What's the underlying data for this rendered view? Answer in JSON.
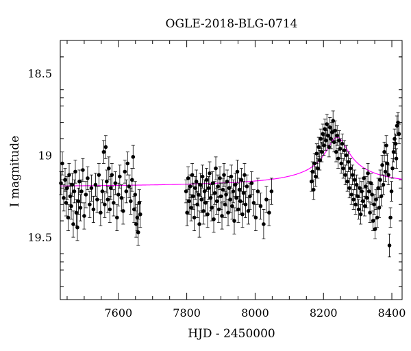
{
  "chart_data": {
    "type": "scatter",
    "title": "OGLE-2018-BLG-0714",
    "xlabel": "HJD - 2450000",
    "ylabel": "I magnitude",
    "xlim": [
      7430,
      8430
    ],
    "ylim": [
      18.3,
      19.88
    ],
    "y_inverted": true,
    "x_ticks": [
      7600,
      7800,
      8000,
      8200,
      8400
    ],
    "x_tick_labels": [
      "7600",
      "7800",
      "8000",
      "8200",
      "8400"
    ],
    "y_ticks": [
      18.5,
      19.0,
      19.5
    ],
    "y_tick_labels": [
      "18.5",
      "19",
      "19.5"
    ],
    "grid": false,
    "colors": {
      "data": "#000000",
      "model": "#ff00ff",
      "axes": "#000000"
    },
    "series": [
      {
        "kind": "data",
        "marker": "filled-circle",
        "error_bars": true,
        "points": [
          [
            7432,
            19.17,
            0.07
          ],
          [
            7436,
            19.05,
            0.07
          ],
          [
            7440,
            19.26,
            0.08
          ],
          [
            7444,
            19.15,
            0.07
          ],
          [
            7447,
            19.29,
            0.08
          ],
          [
            7450,
            19.2,
            0.07
          ],
          [
            7453,
            19.38,
            0.08
          ],
          [
            7456,
            19.12,
            0.07
          ],
          [
            7459,
            19.25,
            0.08
          ],
          [
            7462,
            19.31,
            0.08
          ],
          [
            7465,
            19.18,
            0.07
          ],
          [
            7468,
            19.42,
            0.08
          ],
          [
            7471,
            19.22,
            0.07
          ],
          [
            7474,
            19.1,
            0.07
          ],
          [
            7477,
            19.35,
            0.08
          ],
          [
            7480,
            19.44,
            0.08
          ],
          [
            7483,
            19.28,
            0.08
          ],
          [
            7486,
            19.16,
            0.07
          ],
          [
            7489,
            19.32,
            0.08
          ],
          [
            7492,
            19.22,
            0.07
          ],
          [
            7496,
            19.09,
            0.07
          ],
          [
            7500,
            19.37,
            0.08
          ],
          [
            7505,
            19.24,
            0.08
          ],
          [
            7510,
            19.14,
            0.07
          ],
          [
            7516,
            19.3,
            0.08
          ],
          [
            7521,
            19.2,
            0.08
          ],
          [
            7527,
            19.33,
            0.08
          ],
          [
            7533,
            19.18,
            0.07
          ],
          [
            7538,
            19.27,
            0.08
          ],
          [
            7543,
            19.12,
            0.07
          ],
          [
            7548,
            19.35,
            0.08
          ],
          [
            7553,
            19.22,
            0.07
          ],
          [
            7557,
            18.98,
            0.07
          ],
          [
            7560,
            19.3,
            0.08
          ],
          [
            7563,
            18.95,
            0.07
          ],
          [
            7566,
            19.16,
            0.07
          ],
          [
            7569,
            19.27,
            0.08
          ],
          [
            7572,
            19.08,
            0.07
          ],
          [
            7575,
            19.33,
            0.08
          ],
          [
            7578,
            19.2,
            0.07
          ],
          [
            7581,
            19.12,
            0.07
          ],
          [
            7586,
            19.29,
            0.08
          ],
          [
            7591,
            19.17,
            0.07
          ],
          [
            7596,
            19.38,
            0.08
          ],
          [
            7600,
            19.24,
            0.07
          ],
          [
            7604,
            19.13,
            0.07
          ],
          [
            7609,
            19.26,
            0.08
          ],
          [
            7614,
            19.34,
            0.08
          ],
          [
            7619,
            19.1,
            0.07
          ],
          [
            7623,
            19.22,
            0.07
          ],
          [
            7627,
            19.05,
            0.07
          ],
          [
            7631,
            19.19,
            0.07
          ],
          [
            7636,
            19.28,
            0.08
          ],
          [
            7640,
            19.15,
            0.07
          ],
          [
            7643,
            19.01,
            0.07
          ],
          [
            7646,
            19.33,
            0.08
          ],
          [
            7649,
            19.24,
            0.08
          ],
          [
            7652,
            19.42,
            0.08
          ],
          [
            7655,
            19.38,
            0.08
          ],
          [
            7658,
            19.47,
            0.08
          ],
          [
            7661,
            19.29,
            0.08
          ],
          [
            7664,
            19.36,
            0.08
          ],
          [
            7798,
            19.22,
            0.07
          ],
          [
            7801,
            19.35,
            0.08
          ],
          [
            7804,
            19.14,
            0.07
          ],
          [
            7807,
            19.28,
            0.08
          ],
          [
            7810,
            19.19,
            0.07
          ],
          [
            7813,
            19.32,
            0.08
          ],
          [
            7816,
            19.12,
            0.07
          ],
          [
            7819,
            19.25,
            0.08
          ],
          [
            7822,
            19.38,
            0.08
          ],
          [
            7825,
            19.2,
            0.07
          ],
          [
            7828,
            19.16,
            0.07
          ],
          [
            7831,
            19.3,
            0.08
          ],
          [
            7834,
            19.24,
            0.07
          ],
          [
            7837,
            19.42,
            0.08
          ],
          [
            7840,
            19.18,
            0.07
          ],
          [
            7843,
            19.27,
            0.08
          ],
          [
            7846,
            19.13,
            0.07
          ],
          [
            7849,
            19.34,
            0.08
          ],
          [
            7852,
            19.22,
            0.07
          ],
          [
            7855,
            19.29,
            0.08
          ],
          [
            7858,
            19.15,
            0.07
          ],
          [
            7861,
            19.36,
            0.08
          ],
          [
            7864,
            19.2,
            0.07
          ],
          [
            7867,
            19.11,
            0.07
          ],
          [
            7870,
            19.26,
            0.08
          ],
          [
            7873,
            19.32,
            0.08
          ],
          [
            7876,
            19.17,
            0.07
          ],
          [
            7879,
            19.39,
            0.08
          ],
          [
            7882,
            19.23,
            0.07
          ],
          [
            7885,
            19.08,
            0.07
          ],
          [
            7888,
            19.28,
            0.08
          ],
          [
            7891,
            19.19,
            0.07
          ],
          [
            7894,
            19.33,
            0.08
          ],
          [
            7897,
            19.14,
            0.07
          ],
          [
            7900,
            19.25,
            0.08
          ],
          [
            7903,
            19.37,
            0.08
          ],
          [
            7906,
            19.21,
            0.07
          ],
          [
            7909,
            19.12,
            0.07
          ],
          [
            7912,
            19.3,
            0.08
          ],
          [
            7915,
            19.24,
            0.07
          ],
          [
            7918,
            19.16,
            0.07
          ],
          [
            7921,
            19.35,
            0.08
          ],
          [
            7924,
            19.2,
            0.07
          ],
          [
            7927,
            19.27,
            0.08
          ],
          [
            7930,
            19.13,
            0.07
          ],
          [
            7933,
            19.31,
            0.08
          ],
          [
            7936,
            19.22,
            0.07
          ],
          [
            7939,
            19.4,
            0.08
          ],
          [
            7942,
            19.18,
            0.07
          ],
          [
            7945,
            19.26,
            0.08
          ],
          [
            7948,
            19.1,
            0.07
          ],
          [
            7951,
            19.33,
            0.08
          ],
          [
            7954,
            19.21,
            0.07
          ],
          [
            7957,
            19.28,
            0.08
          ],
          [
            7960,
            19.15,
            0.07
          ],
          [
            7963,
            19.36,
            0.08
          ],
          [
            7966,
            19.23,
            0.07
          ],
          [
            7969,
            19.12,
            0.07
          ],
          [
            7972,
            19.3,
            0.08
          ],
          [
            7976,
            19.19,
            0.07
          ],
          [
            7980,
            19.34,
            0.08
          ],
          [
            7985,
            19.25,
            0.08
          ],
          [
            7990,
            19.17,
            0.07
          ],
          [
            7996,
            19.29,
            0.08
          ],
          [
            8002,
            19.38,
            0.08
          ],
          [
            8008,
            19.22,
            0.08
          ],
          [
            8016,
            19.31,
            0.08
          ],
          [
            8025,
            19.42,
            0.09
          ],
          [
            8033,
            19.27,
            0.08
          ],
          [
            8041,
            19.35,
            0.08
          ],
          [
            8048,
            19.22,
            0.08
          ],
          [
            8165,
            19.16,
            0.06
          ],
          [
            8168,
            19.1,
            0.06
          ],
          [
            8171,
            19.21,
            0.06
          ],
          [
            8174,
            19.05,
            0.06
          ],
          [
            8177,
            19.13,
            0.06
          ],
          [
            8180,
            18.99,
            0.06
          ],
          [
            8183,
            19.08,
            0.06
          ],
          [
            8186,
            18.95,
            0.06
          ],
          [
            8189,
            19.03,
            0.06
          ],
          [
            8192,
            18.9,
            0.06
          ],
          [
            8195,
            18.98,
            0.06
          ],
          [
            8198,
            18.87,
            0.06
          ],
          [
            8201,
            18.94,
            0.06
          ],
          [
            8204,
            18.84,
            0.06
          ],
          [
            8207,
            18.91,
            0.06
          ],
          [
            8210,
            18.81,
            0.06
          ],
          [
            8213,
            18.88,
            0.06
          ],
          [
            8216,
            18.95,
            0.06
          ],
          [
            8219,
            18.83,
            0.06
          ],
          [
            8222,
            18.9,
            0.06
          ],
          [
            8225,
            18.86,
            0.06
          ],
          [
            8228,
            18.79,
            0.06
          ],
          [
            8231,
            18.92,
            0.06
          ],
          [
            8234,
            18.85,
            0.06
          ],
          [
            8237,
            18.98,
            0.06
          ],
          [
            8240,
            18.88,
            0.06
          ],
          [
            8243,
            19.02,
            0.06
          ],
          [
            8246,
            18.91,
            0.06
          ],
          [
            8249,
            18.96,
            0.06
          ],
          [
            8252,
            19.05,
            0.06
          ],
          [
            8255,
            18.93,
            0.06
          ],
          [
            8258,
            19.08,
            0.06
          ],
          [
            8261,
            18.97,
            0.06
          ],
          [
            8264,
            19.12,
            0.06
          ],
          [
            8267,
            19.0,
            0.06
          ],
          [
            8270,
            19.16,
            0.06
          ],
          [
            8273,
            19.04,
            0.06
          ],
          [
            8276,
            19.2,
            0.06
          ],
          [
            8279,
            19.08,
            0.06
          ],
          [
            8282,
            19.24,
            0.06
          ],
          [
            8285,
            19.12,
            0.06
          ],
          [
            8288,
            19.27,
            0.06
          ],
          [
            8291,
            19.15,
            0.06
          ],
          [
            8294,
            19.3,
            0.06
          ],
          [
            8297,
            19.18,
            0.06
          ],
          [
            8300,
            19.25,
            0.06
          ],
          [
            8303,
            19.33,
            0.06
          ],
          [
            8306,
            19.2,
            0.06
          ],
          [
            8309,
            19.36,
            0.06
          ],
          [
            8312,
            19.22,
            0.06
          ],
          [
            8315,
            19.28,
            0.06
          ],
          [
            8318,
            19.14,
            0.06
          ],
          [
            8321,
            19.31,
            0.06
          ],
          [
            8324,
            19.19,
            0.06
          ],
          [
            8327,
            19.26,
            0.06
          ],
          [
            8330,
            19.11,
            0.06
          ],
          [
            8333,
            19.22,
            0.06
          ],
          [
            8336,
            19.35,
            0.06
          ],
          [
            8339,
            19.17,
            0.06
          ],
          [
            8342,
            19.24,
            0.06
          ],
          [
            8345,
            19.4,
            0.06
          ],
          [
            8348,
            19.3,
            0.06
          ],
          [
            8351,
            19.45,
            0.06
          ],
          [
            8354,
            19.27,
            0.06
          ],
          [
            8357,
            19.38,
            0.06
          ],
          [
            8360,
            19.2,
            0.06
          ],
          [
            8363,
            19.32,
            0.06
          ],
          [
            8366,
            19.15,
            0.06
          ],
          [
            8369,
            19.25,
            0.06
          ],
          [
            8372,
            19.06,
            0.06
          ],
          [
            8375,
            19.18,
            0.06
          ],
          [
            8378,
            18.98,
            0.06
          ],
          [
            8381,
            19.1,
            0.06
          ],
          [
            8384,
            18.94,
            0.06
          ],
          [
            8387,
            19.05,
            0.06
          ],
          [
            8390,
            19.12,
            0.06
          ],
          [
            8393,
            19.55,
            0.07
          ],
          [
            8396,
            19.38,
            0.06
          ],
          [
            8399,
            19.22,
            0.06
          ],
          [
            8402,
            19.08,
            0.06
          ],
          [
            8405,
            18.98,
            0.06
          ],
          [
            8408,
            18.9,
            0.06
          ],
          [
            8411,
            18.93,
            0.06
          ],
          [
            8413,
            19.02,
            0.06
          ],
          [
            8415,
            18.82,
            0.06
          ],
          [
            8418,
            18.8,
            0.06
          ],
          [
            8421,
            18.87,
            0.06
          ]
        ]
      },
      {
        "kind": "model",
        "line": "solid",
        "model": {
          "baseline": 19.2,
          "peak": 18.89,
          "t0": 8240,
          "tE": 50
        }
      }
    ]
  }
}
